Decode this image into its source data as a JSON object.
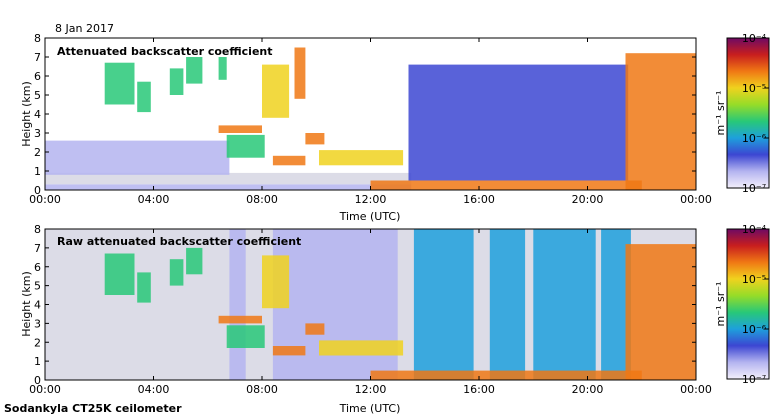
{
  "date_label": "8 Jan 2017",
  "footer": "Sodankyla CT25K ceilometer",
  "colors": {
    "colormap": [
      "#f4f0fb",
      "#b4b4f0",
      "#3c46d2",
      "#1ea0dc",
      "#28c878",
      "#96dc28",
      "#f0d21e",
      "#f07814",
      "#c81e1e",
      "#6e0a64"
    ],
    "background": "#ffffff",
    "noise": "#d8d8e4"
  },
  "chart_data": [
    {
      "type": "heatmap",
      "title": "Attenuated backscatter coefficient",
      "xlabel": "Time (UTC)",
      "ylabel": "Height (km)",
      "xlim": [
        0,
        24
      ],
      "ylim": [
        0,
        8
      ],
      "x_ticks": [
        "00:00",
        "04:00",
        "08:00",
        "12:00",
        "16:00",
        "20:00",
        "00:00"
      ],
      "y_ticks": [
        "0",
        "1",
        "2",
        "3",
        "4",
        "5",
        "6",
        "7",
        "8"
      ],
      "colorbar": {
        "label": "m⁻¹ sr⁻¹",
        "scale": "log",
        "range": [
          1e-07,
          0.0001
        ],
        "ticks": [
          "10⁻⁷",
          "10⁻⁶",
          "10⁻⁵",
          "10⁻⁴"
        ]
      },
      "features": [
        {
          "name": "surface layer",
          "t0": 0,
          "t1": 13.5,
          "h0": 0,
          "h1": 0.3,
          "level": 1
        },
        {
          "name": "low noise layer",
          "t0": 0,
          "t1": 13.5,
          "h0": 0.3,
          "h1": 0.9,
          "level": 0
        },
        {
          "name": "aerosol layer",
          "t0": 0,
          "t1": 6.8,
          "h0": 0.8,
          "h1": 2.6,
          "level": 1
        },
        {
          "name": "mid-level cloud",
          "t0": 2.2,
          "t1": 3.3,
          "h0": 4.5,
          "h1": 6.7,
          "level": 4
        },
        {
          "name": "mid-level cloud",
          "t0": 3.4,
          "t1": 3.9,
          "h0": 4.1,
          "h1": 5.7,
          "level": 4
        },
        {
          "name": "mid-level cloud",
          "t0": 4.6,
          "t1": 5.1,
          "h0": 5.0,
          "h1": 6.4,
          "level": 4
        },
        {
          "name": "mid-level cloud",
          "t0": 5.2,
          "t1": 5.8,
          "h0": 5.6,
          "h1": 7.0,
          "level": 4
        },
        {
          "name": "mid-level cloud",
          "t0": 6.4,
          "t1": 6.7,
          "h0": 5.8,
          "h1": 7.0,
          "level": 4
        },
        {
          "name": "cloud 3 km",
          "t0": 6.4,
          "t1": 8.0,
          "h0": 3.0,
          "h1": 3.4,
          "level": 7
        },
        {
          "name": "low cloud",
          "t0": 6.7,
          "t1": 8.1,
          "h0": 1.7,
          "h1": 2.9,
          "level": 4
        },
        {
          "name": "descending cloud",
          "t0": 8.0,
          "t1": 9.0,
          "h0": 3.8,
          "h1": 6.6,
          "level": 6
        },
        {
          "name": "tall cloud",
          "t0": 9.2,
          "t1": 9.6,
          "h0": 4.8,
          "h1": 7.5,
          "level": 7
        },
        {
          "name": "cloud base 1.5 km",
          "t0": 8.4,
          "t1": 9.6,
          "h0": 1.3,
          "h1": 1.8,
          "level": 7
        },
        {
          "name": "cloud 2.7 km",
          "t0": 9.6,
          "t1": 10.3,
          "h0": 2.4,
          "h1": 3.0,
          "level": 7
        },
        {
          "name": "cloud base 1.5-2 km",
          "t0": 10.1,
          "t1": 13.2,
          "h0": 1.3,
          "h1": 2.1,
          "level": 6
        },
        {
          "name": "surface cloud",
          "t0": 12.0,
          "t1": 22.0,
          "h0": 0,
          "h1": 0.5,
          "level": 7
        },
        {
          "name": "precipitation streaks",
          "t0": 13.4,
          "t1": 21.5,
          "h0": 0.5,
          "h1": 6.6,
          "level": 2
        },
        {
          "name": "rising cloud",
          "t0": 21.4,
          "t1": 24.0,
          "h0": 0,
          "h1": 7.2,
          "level": 7
        }
      ]
    },
    {
      "type": "heatmap",
      "title": "Raw attenuated backscatter coefficient",
      "xlabel": "Time (UTC)",
      "ylabel": "Height (km)",
      "xlim": [
        0,
        24
      ],
      "ylim": [
        0,
        8
      ],
      "x_ticks": [
        "00:00",
        "04:00",
        "08:00",
        "12:00",
        "16:00",
        "20:00",
        "00:00"
      ],
      "y_ticks": [
        "0",
        "1",
        "2",
        "3",
        "4",
        "5",
        "6",
        "7",
        "8"
      ],
      "colorbar": {
        "label": "m⁻¹ sr⁻¹",
        "scale": "log",
        "range": [
          1e-07,
          0.0001
        ],
        "ticks": [
          "10⁻⁷",
          "10⁻⁶",
          "10⁻⁵",
          "10⁻⁴"
        ]
      },
      "features": [
        {
          "name": "noise background",
          "t0": 0,
          "t1": 24,
          "h0": 0,
          "h1": 8,
          "level": 0
        },
        {
          "name": "noise curtain",
          "t0": 6.8,
          "t1": 7.4,
          "h0": 0,
          "h1": 8,
          "level": 1
        },
        {
          "name": "noise curtain",
          "t0": 8.4,
          "t1": 13.0,
          "h0": 0,
          "h1": 8,
          "level": 1
        },
        {
          "name": "noise curtain",
          "t0": 13.6,
          "t1": 15.8,
          "h0": 0,
          "h1": 8,
          "level": 3
        },
        {
          "name": "noise curtain",
          "t0": 16.4,
          "t1": 17.7,
          "h0": 0,
          "h1": 8,
          "level": 3
        },
        {
          "name": "noise curtain",
          "t0": 18.0,
          "t1": 20.3,
          "h0": 0,
          "h1": 8,
          "level": 3
        },
        {
          "name": "noise curtain",
          "t0": 20.5,
          "t1": 21.6,
          "h0": 0,
          "h1": 8,
          "level": 3
        },
        {
          "name": "mid-level cloud",
          "t0": 2.2,
          "t1": 3.3,
          "h0": 4.5,
          "h1": 6.7,
          "level": 4
        },
        {
          "name": "mid-level cloud",
          "t0": 3.4,
          "t1": 3.9,
          "h0": 4.1,
          "h1": 5.7,
          "level": 4
        },
        {
          "name": "mid-level cloud",
          "t0": 4.6,
          "t1": 5.1,
          "h0": 5.0,
          "h1": 6.4,
          "level": 4
        },
        {
          "name": "mid-level cloud",
          "t0": 5.2,
          "t1": 5.8,
          "h0": 5.6,
          "h1": 7.0,
          "level": 4
        },
        {
          "name": "cloud 3 km",
          "t0": 6.4,
          "t1": 8.0,
          "h0": 3.0,
          "h1": 3.4,
          "level": 7
        },
        {
          "name": "low cloud",
          "t0": 6.7,
          "t1": 8.1,
          "h0": 1.7,
          "h1": 2.9,
          "level": 4
        },
        {
          "name": "descending cloud",
          "t0": 8.0,
          "t1": 9.0,
          "h0": 3.8,
          "h1": 6.6,
          "level": 6
        },
        {
          "name": "cloud base 1.5 km",
          "t0": 8.4,
          "t1": 9.6,
          "h0": 1.3,
          "h1": 1.8,
          "level": 7
        },
        {
          "name": "cloud 2.7 km",
          "t0": 9.6,
          "t1": 10.3,
          "h0": 2.4,
          "h1": 3.0,
          "level": 7
        },
        {
          "name": "cloud base 1.5-2 km",
          "t0": 10.1,
          "t1": 13.2,
          "h0": 1.3,
          "h1": 2.1,
          "level": 6
        },
        {
          "name": "surface cloud",
          "t0": 12.0,
          "t1": 22.0,
          "h0": 0,
          "h1": 0.5,
          "level": 7
        },
        {
          "name": "rising cloud",
          "t0": 21.4,
          "t1": 24.0,
          "h0": 0,
          "h1": 7.2,
          "level": 7
        }
      ]
    }
  ]
}
